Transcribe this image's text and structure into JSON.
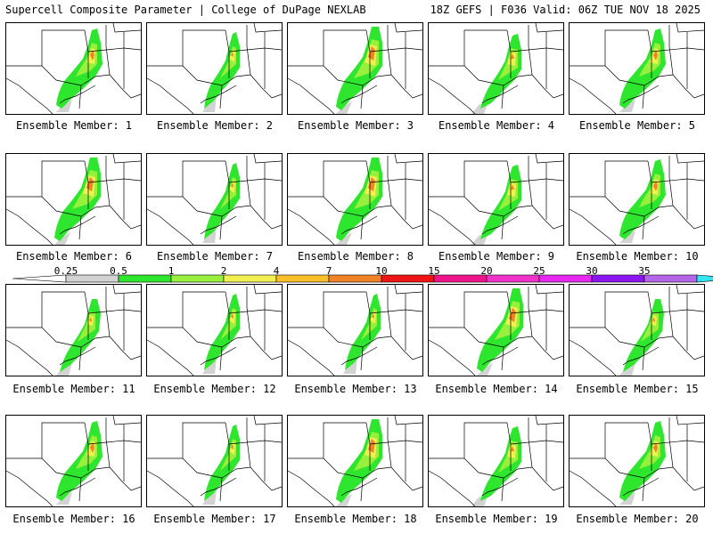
{
  "header": {
    "left_title": "Supercell Composite Parameter | College of DuPage NEXLAB",
    "right_title": "18Z GEFS | F036 Valid: 06Z TUE NOV 18 2025"
  },
  "panel_label_prefix": "Ensemble Member:",
  "members": [
    {
      "label": "Ensemble Member: 1",
      "shape": "a"
    },
    {
      "label": "Ensemble Member: 2",
      "shape": "b"
    },
    {
      "label": "Ensemble Member: 3",
      "shape": "c"
    },
    {
      "label": "Ensemble Member: 4",
      "shape": "d"
    },
    {
      "label": "Ensemble Member: 5",
      "shape": "a"
    },
    {
      "label": "Ensemble Member: 6",
      "shape": "c"
    },
    {
      "label": "Ensemble Member: 7",
      "shape": "b"
    },
    {
      "label": "Ensemble Member: 8",
      "shape": "c"
    },
    {
      "label": "Ensemble Member: 9",
      "shape": "d"
    },
    {
      "label": "Ensemble Member: 10",
      "shape": "a"
    },
    {
      "label": "Ensemble Member: 11",
      "shape": "e"
    },
    {
      "label": "Ensemble Member: 12",
      "shape": "b"
    },
    {
      "label": "Ensemble Member: 13",
      "shape": "b"
    },
    {
      "label": "Ensemble Member: 14",
      "shape": "c"
    },
    {
      "label": "Ensemble Member: 15",
      "shape": "e"
    },
    {
      "label": "Ensemble Member: 16",
      "shape": "a"
    },
    {
      "label": "Ensemble Member: 17",
      "shape": "b"
    },
    {
      "label": "Ensemble Member: 18",
      "shape": "c"
    },
    {
      "label": "Ensemble Member: 19",
      "shape": "d"
    },
    {
      "label": "Ensemble Member: 20",
      "shape": "a"
    }
  ],
  "colorbar": {
    "levels": [
      "0.25",
      "0.5",
      "1",
      "2",
      "4",
      "7",
      "10",
      "15",
      "20",
      "25",
      "30",
      "35"
    ],
    "colors": [
      "#d3d3d3",
      "#2fe62f",
      "#96f03c",
      "#f0f050",
      "#fabe28",
      "#f08228",
      "#f01414",
      "#f0148c",
      "#f032c8",
      "#e628f0",
      "#8c14f0",
      "#b464e6",
      "#32e6f0"
    ]
  }
}
